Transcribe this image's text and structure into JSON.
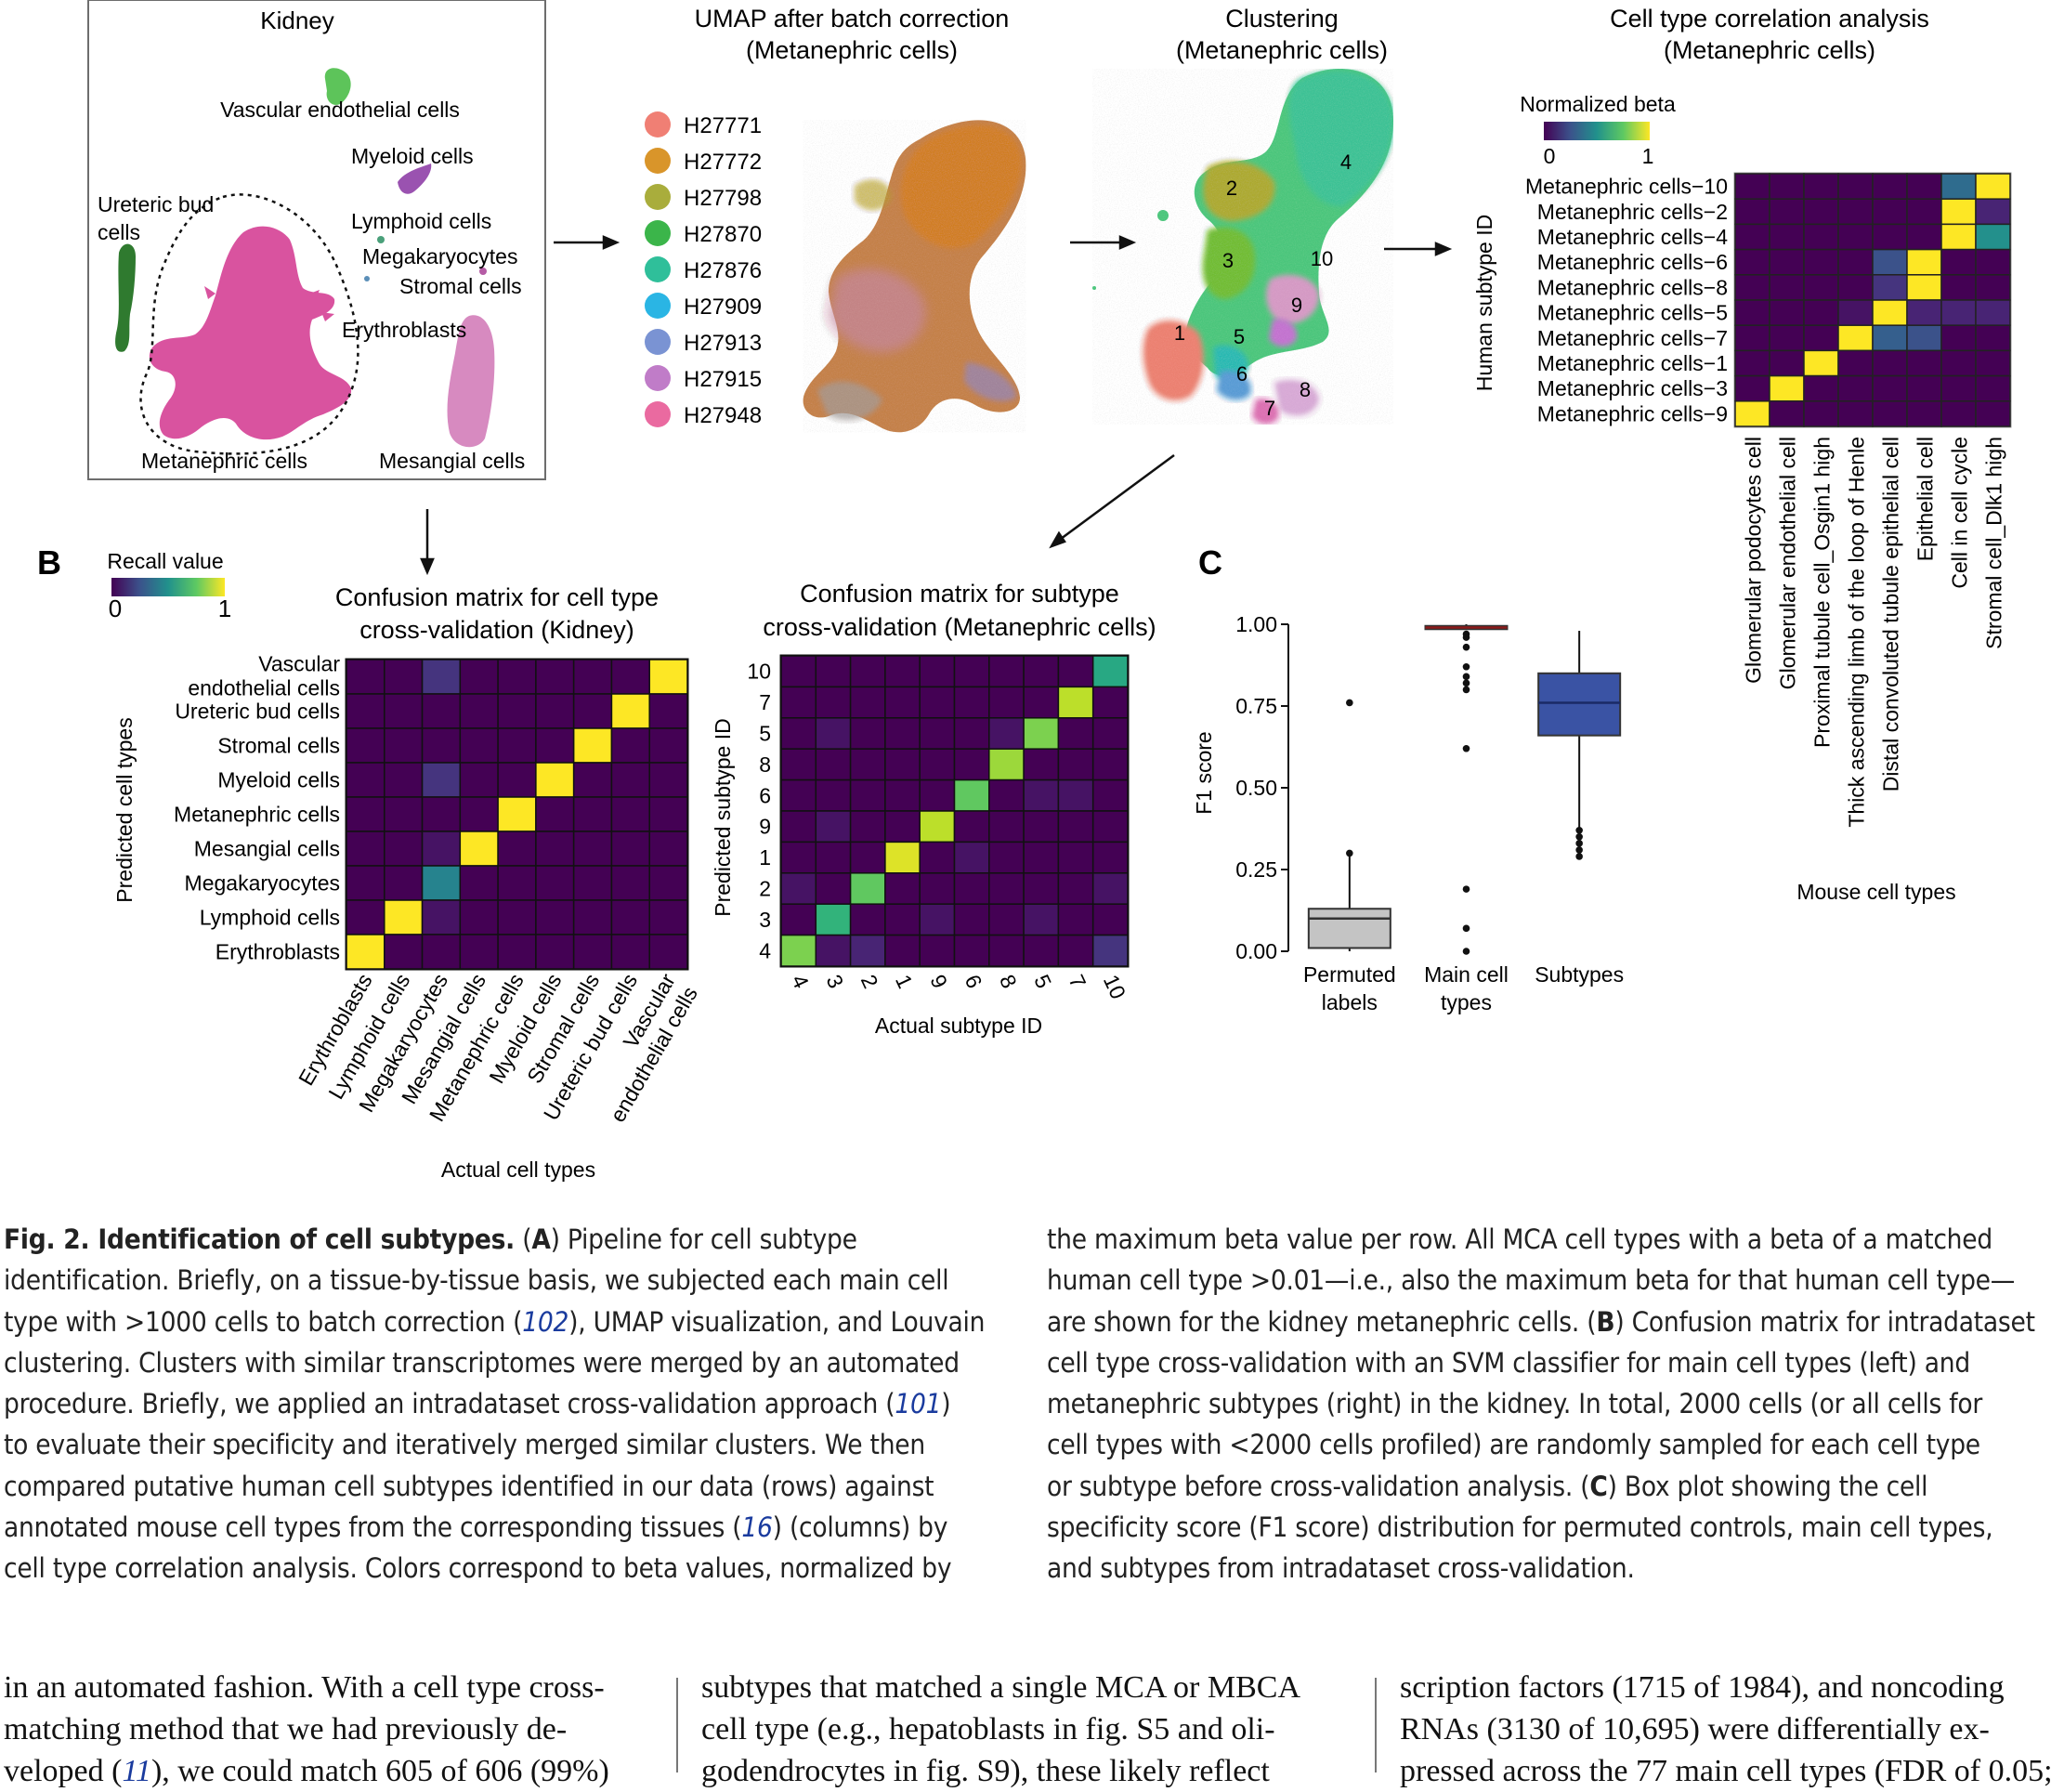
{
  "panel_labels": {
    "b": "B",
    "c": "C"
  },
  "kidney": {
    "title": "Kidney",
    "labels": [
      "Vascular endothelial cells",
      "Myeloid cells",
      "Ureteric bud",
      "cells",
      "Lymphoid cells",
      "Megakaryocytes",
      "Stromal cells",
      "Erythroblasts",
      "Metanephric cells",
      "Mesangial cells"
    ]
  },
  "umap_batch": {
    "title_line1": "UMAP after batch correction",
    "title_line2": "(Metanephric cells)",
    "legend": [
      {
        "label": "H27771",
        "color": "#f07f74"
      },
      {
        "label": "H27772",
        "color": "#d9952a"
      },
      {
        "label": "H27798",
        "color": "#a9ad3c"
      },
      {
        "label": "H27870",
        "color": "#3bb54a"
      },
      {
        "label": "H27876",
        "color": "#2fbf9a"
      },
      {
        "label": "H27909",
        "color": "#2ab5e4"
      },
      {
        "label": "H27913",
        "color": "#7a93d3"
      },
      {
        "label": "H27915",
        "color": "#c07cc8"
      },
      {
        "label": "H27948",
        "color": "#ea6aa0"
      }
    ]
  },
  "clustering": {
    "title_line1": "Clustering",
    "title_line2": "(Metanephric cells)",
    "cluster_ids": [
      "1",
      "2",
      "3",
      "4",
      "5",
      "6",
      "7",
      "8",
      "9",
      "10"
    ]
  },
  "correlation": {
    "title_line1": "Cell type correlation analysis",
    "title_line2": "(Metanephric cells)",
    "legend_title": "Normalized beta",
    "legend_min": "0",
    "legend_max": "1",
    "ylabel": "Human subtype ID",
    "xlabel": "Mouse cell types",
    "rows": [
      "Metanephric cells−10",
      "Metanephric cells−2",
      "Metanephric cells−4",
      "Metanephric cells−6",
      "Metanephric cells−8",
      "Metanephric cells−5",
      "Metanephric cells−7",
      "Metanephric cells−1",
      "Metanephric cells−3",
      "Metanephric cells−9"
    ],
    "columns": [
      "Glomerular podocytes cell",
      "Glomerular endothelial cell",
      "Proximal tubule cell_Osgin1 high",
      "Thick ascending limb of the loop of Henle",
      "Distal convoluted tubule epithelial cell",
      "Epithelial cell",
      "Cell in cell cycle",
      "Stromal cell_Dlk1 high"
    ],
    "values": [
      [
        0,
        0,
        0,
        0,
        0,
        0,
        0.35,
        1
      ],
      [
        0,
        0,
        0,
        0,
        0,
        0,
        1,
        0.1
      ],
      [
        0,
        0,
        0,
        0,
        0,
        0,
        1,
        0.5
      ],
      [
        0,
        0,
        0,
        0,
        0.25,
        1,
        0,
        0
      ],
      [
        0,
        0,
        0,
        0,
        0.15,
        1,
        0,
        0
      ],
      [
        0,
        0,
        0,
        0.05,
        1,
        0.1,
        0.1,
        0.1
      ],
      [
        0,
        0,
        0,
        1,
        0.3,
        0.25,
        0,
        0
      ],
      [
        0,
        0,
        1,
        0,
        0,
        0,
        0,
        0
      ],
      [
        0,
        1,
        0,
        0,
        0,
        0,
        0,
        0
      ],
      [
        1,
        0,
        0,
        0,
        0,
        0,
        0,
        0
      ]
    ]
  },
  "confusion_kidney": {
    "legend_title": "Recall value",
    "legend_min": "0",
    "legend_max": "1",
    "title_line1": "Confusion matrix for cell type",
    "title_line2": "cross-validation (Kidney)",
    "ylabel": "Predicted cell types",
    "xlabel": "Actual cell types",
    "rows": [
      "Vascular endothelial cells",
      "Ureteric bud cells",
      "Stromal cells",
      "Myeloid cells",
      "Metanephric cells",
      "Mesangial cells",
      "Megakaryocytes",
      "Lymphoid cells",
      "Erythroblasts"
    ],
    "columns": [
      "Erythroblasts",
      "Lymphoid cells",
      "Megakaryocytes",
      "Mesangial cells",
      "Metanephric cells",
      "Myeloid cells",
      "Stromal cells",
      "Ureteric bud cells",
      "Vascular endothelial cells"
    ],
    "values": [
      [
        0,
        0,
        0.15,
        0,
        0,
        0,
        0,
        0,
        1
      ],
      [
        0,
        0,
        0,
        0,
        0,
        0,
        0,
        1,
        0
      ],
      [
        0,
        0,
        0,
        0,
        0,
        0,
        1,
        0,
        0
      ],
      [
        0,
        0,
        0.15,
        0,
        0,
        1,
        0,
        0,
        0
      ],
      [
        0,
        0,
        0,
        0,
        1,
        0,
        0,
        0,
        0
      ],
      [
        0,
        0,
        0.05,
        1,
        0,
        0,
        0,
        0,
        0
      ],
      [
        0,
        0,
        0.45,
        0,
        0,
        0,
        0,
        0,
        0
      ],
      [
        0,
        1,
        0.05,
        0,
        0,
        0,
        0,
        0,
        0
      ],
      [
        1,
        0,
        0,
        0,
        0,
        0,
        0,
        0,
        0
      ]
    ]
  },
  "confusion_subtype": {
    "title_line1": "Confusion matrix for subtype",
    "title_line2": "cross-validation (Metanephric cells)",
    "ylabel": "Predicted subtype ID",
    "xlabel": "Actual subtype ID",
    "rows": [
      "10",
      "7",
      "5",
      "8",
      "6",
      "9",
      "1",
      "2",
      "3",
      "4"
    ],
    "columns": [
      "4",
      "3",
      "2",
      "1",
      "9",
      "6",
      "8",
      "5",
      "7",
      "10"
    ],
    "values": [
      [
        0,
        0,
        0,
        0,
        0,
        0,
        0,
        0,
        0,
        0.6
      ],
      [
        0,
        0,
        0,
        0,
        0,
        0,
        0,
        0,
        0.9,
        0
      ],
      [
        0,
        0.05,
        0,
        0,
        0,
        0,
        0.05,
        0.8,
        0,
        0
      ],
      [
        0,
        0,
        0,
        0,
        0,
        0,
        0.85,
        0,
        0,
        0
      ],
      [
        0,
        0,
        0,
        0,
        0,
        0.75,
        0,
        0.05,
        0.05,
        0
      ],
      [
        0,
        0.05,
        0,
        0,
        0.9,
        0,
        0,
        0,
        0,
        0
      ],
      [
        0,
        0,
        0,
        0.95,
        0,
        0.05,
        0,
        0,
        0,
        0
      ],
      [
        0.05,
        0,
        0.75,
        0,
        0,
        0,
        0,
        0,
        0,
        0.05
      ],
      [
        0,
        0.65,
        0,
        0,
        0.05,
        0,
        0,
        0.05,
        0,
        0
      ],
      [
        0.8,
        0.05,
        0.1,
        0,
        0,
        0,
        0,
        0,
        0,
        0.15
      ]
    ]
  },
  "chart_data": {
    "type": "box",
    "ylabel": "F1 score",
    "yticks": [
      "0.00",
      "0.25",
      "0.50",
      "0.75",
      "1.00"
    ],
    "ylim": [
      0,
      1
    ],
    "categories": [
      {
        "label_line1": "Permuted",
        "label_line2": "labels",
        "color": "#c4c4c4",
        "median_color": "#333333",
        "q1": 0.01,
        "median": 0.1,
        "q3": 0.13,
        "whisker_low": 0.0,
        "whisker_high": 0.29,
        "outliers": [
          0.3,
          0.76
        ]
      },
      {
        "label_line1": "Main cell",
        "label_line2": "types",
        "color": "#c0504d",
        "median_color": "#8b1a1a",
        "q1": 0.985,
        "median": 0.99,
        "q3": 0.995,
        "whisker_low": 0.985,
        "whisker_high": 1.0,
        "outliers": [
          0.97,
          0.96,
          0.93,
          0.87,
          0.84,
          0.82,
          0.8,
          0.62,
          0.19,
          0.07,
          0.0
        ]
      },
      {
        "label_line1": "Subtypes",
        "label_line2": "",
        "color": "#3a53a4",
        "median_color": "#1a2a66",
        "q1": 0.66,
        "median": 0.76,
        "q3": 0.85,
        "whisker_low": 0.35,
        "whisker_high": 0.98,
        "outliers": [
          0.37,
          0.35,
          0.33,
          0.31,
          0.29
        ]
      }
    ]
  },
  "caption_left": [
    [
      "Fig. 2. Identification of cell subtypes.",
      " (",
      "A",
      ") Pipeline for cell subtype"
    ],
    [
      "identification. Briefly, on a tissue-by-tissue basis, we subjected each main cell"
    ],
    [
      "type with >1000 cells to batch correction (",
      "102",
      "), UMAP visualization, and Louvain"
    ],
    [
      "clustering. Clusters with similar transcriptomes were merged by an automated"
    ],
    [
      "procedure. Briefly, we applied an intradataset cross-validation approach (",
      "101",
      ")"
    ],
    [
      "to evaluate their specificity and iteratively merged similar clusters. We then"
    ],
    [
      "compared putative human cell subtypes identified in our data (rows) against"
    ],
    [
      "annotated mouse cell types from the corresponding tissues (",
      "16",
      ") (columns) by"
    ],
    [
      "cell type correlation analysis. Colors correspond to beta values, normalized by"
    ]
  ],
  "caption_right": [
    "the maximum beta value per row. All MCA cell types with a beta of a matched",
    "human cell type >0.01—i.e., also the maximum beta for that human cell type—",
    [
      "are shown for the kidney metanephric cells. (",
      "B",
      ") Confusion matrix for intradataset"
    ],
    "cell type cross-validation with an SVM classifier for main cell types (left) and",
    "metanephric subtypes (right) in the kidney. In total, 2000 cells (or all cells for",
    "cell types with <2000 cells profiled) are randomly sampled for each cell type",
    [
      "or subtype before cross-validation analysis. (",
      "C",
      ") Box plot showing the cell"
    ],
    "specificity score (F1 score) distribution for permuted controls, main cell types,",
    "and subtypes from intradataset cross-validation."
  ],
  "body_columns": [
    [
      "in an automated fashion. With a cell type cross-",
      "matching method that we had previously de-",
      [
        "veloped (",
        "11",
        "), we could match 605 of 606 (99%)"
      ]
    ],
    [
      "subtypes that matched a single MCA or MBCA",
      "cell type (e.g., hepatoblasts in fig. S5 and oli-",
      "godendrocytes in fig. S9), these likely reflect"
    ],
    [
      "scription factors (1715 of 1984), and noncoding",
      "RNAs (3130 of 10,695) were differentially ex-",
      "pressed across the 77 main cell types (FDR of 0.05;"
    ]
  ]
}
